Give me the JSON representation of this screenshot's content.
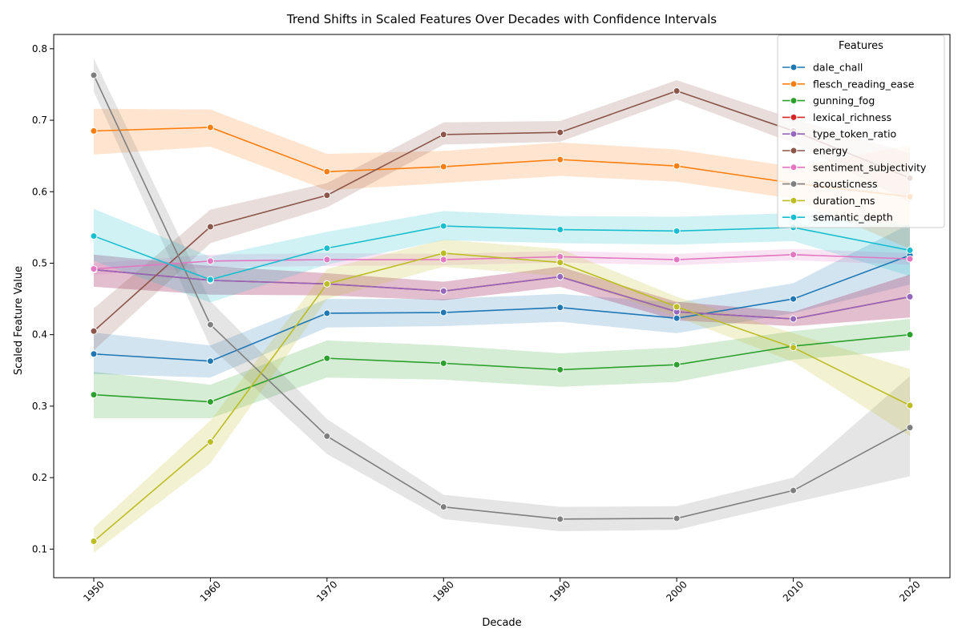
{
  "chart_data": {
    "type": "line",
    "title": "Trend Shifts in Scaled Features Over Decades with Confidence Intervals",
    "xlabel": "Decade",
    "ylabel": "Scaled Feature Value",
    "x": [
      1950,
      1960,
      1970,
      1980,
      1990,
      2000,
      2010,
      2020
    ],
    "xlim": [
      1950,
      2020
    ],
    "ylim": [
      0.06,
      0.82
    ],
    "yticks": [
      0.1,
      0.2,
      0.3,
      0.4,
      0.5,
      0.6,
      0.7,
      0.8
    ],
    "yticklabels": [
      "0.1",
      "0.2",
      "0.3",
      "0.4",
      "0.5",
      "0.6",
      "0.7",
      "0.8"
    ],
    "xticklabels": [
      "1950",
      "1960",
      "1970",
      "1980",
      "1990",
      "2000",
      "2010",
      "2020"
    ],
    "grid": false,
    "legend_title": "Features",
    "legend_position": "top-right",
    "series": [
      {
        "name": "dale_chall",
        "color": "#1f77b4",
        "values": [
          0.373,
          0.363,
          0.43,
          0.431,
          0.438,
          0.423,
          0.45,
          0.511
        ],
        "lower": [
          0.345,
          0.34,
          0.41,
          0.412,
          0.418,
          0.402,
          0.43,
          0.47
        ],
        "upper": [
          0.403,
          0.385,
          0.45,
          0.45,
          0.457,
          0.445,
          0.472,
          0.555
        ]
      },
      {
        "name": "flesch_reading_ease",
        "color": "#ff7f0e",
        "values": [
          0.685,
          0.69,
          0.628,
          0.635,
          0.645,
          0.636,
          0.612,
          0.593
        ],
        "lower": [
          0.652,
          0.663,
          0.602,
          0.612,
          0.622,
          0.614,
          0.59,
          0.52
        ],
        "upper": [
          0.716,
          0.715,
          0.653,
          0.657,
          0.669,
          0.659,
          0.635,
          0.665
        ]
      },
      {
        "name": "gunning_fog",
        "color": "#2ca02c",
        "values": [
          0.316,
          0.306,
          0.367,
          0.36,
          0.351,
          0.358,
          0.384,
          0.4
        ],
        "lower": [
          0.283,
          0.283,
          0.34,
          0.337,
          0.327,
          0.334,
          0.365,
          0.378
        ],
        "upper": [
          0.348,
          0.33,
          0.392,
          0.385,
          0.374,
          0.382,
          0.405,
          0.422
        ]
      },
      {
        "name": "lexical_richness",
        "color": "#d62728",
        "values": [
          0.491,
          0.476,
          0.471,
          0.461,
          0.481,
          0.432,
          0.422,
          0.453
        ],
        "lower": [
          0.467,
          0.456,
          0.455,
          0.448,
          0.467,
          0.42,
          0.412,
          0.424
        ],
        "upper": [
          0.512,
          0.496,
          0.486,
          0.474,
          0.495,
          0.446,
          0.432,
          0.484
        ]
      },
      {
        "name": "type_token_ratio",
        "color": "#9467bd",
        "values": [
          0.491,
          0.476,
          0.471,
          0.461,
          0.481,
          0.432,
          0.422,
          0.453
        ],
        "lower": [
          0.467,
          0.456,
          0.455,
          0.448,
          0.467,
          0.42,
          0.412,
          0.424
        ],
        "upper": [
          0.512,
          0.496,
          0.486,
          0.474,
          0.495,
          0.446,
          0.432,
          0.484
        ]
      },
      {
        "name": "energy",
        "color": "#8c564b",
        "values": [
          0.405,
          0.551,
          0.595,
          0.68,
          0.683,
          0.741,
          0.685,
          0.619
        ],
        "lower": [
          0.378,
          0.528,
          0.578,
          0.666,
          0.67,
          0.729,
          0.668,
          0.585
        ],
        "upper": [
          0.437,
          0.575,
          0.612,
          0.697,
          0.699,
          0.756,
          0.702,
          0.654
        ]
      },
      {
        "name": "sentiment_subjectivity",
        "color": "#e377c2",
        "values": [
          0.492,
          0.503,
          0.505,
          0.505,
          0.509,
          0.505,
          0.512,
          0.506
        ],
        "lower": [
          0.484,
          0.494,
          0.496,
          0.497,
          0.501,
          0.497,
          0.504,
          0.498
        ],
        "upper": [
          0.5,
          0.512,
          0.514,
          0.513,
          0.517,
          0.513,
          0.52,
          0.514
        ]
      },
      {
        "name": "acousticness",
        "color": "#7f7f7f",
        "values": [
          0.763,
          0.414,
          0.258,
          0.159,
          0.142,
          0.143,
          0.182,
          0.27
        ],
        "lower": [
          0.74,
          0.383,
          0.233,
          0.142,
          0.125,
          0.127,
          0.165,
          0.202
        ],
        "upper": [
          0.786,
          0.447,
          0.282,
          0.176,
          0.159,
          0.16,
          0.2,
          0.342
        ]
      },
      {
        "name": "duration_ms",
        "color": "#bcbd22",
        "values": [
          0.111,
          0.25,
          0.471,
          0.514,
          0.501,
          0.439,
          0.382,
          0.301
        ],
        "lower": [
          0.095,
          0.22,
          0.45,
          0.495,
          0.482,
          0.425,
          0.362,
          0.258
        ],
        "upper": [
          0.13,
          0.28,
          0.492,
          0.533,
          0.52,
          0.453,
          0.402,
          0.352
        ]
      },
      {
        "name": "semantic_depth",
        "color": "#17becf",
        "values": [
          0.538,
          0.477,
          0.521,
          0.552,
          0.547,
          0.545,
          0.55,
          0.518
        ],
        "lower": [
          0.503,
          0.445,
          0.498,
          0.532,
          0.528,
          0.526,
          0.531,
          0.482
        ],
        "upper": [
          0.576,
          0.509,
          0.544,
          0.573,
          0.566,
          0.565,
          0.57,
          0.553
        ]
      }
    ]
  }
}
